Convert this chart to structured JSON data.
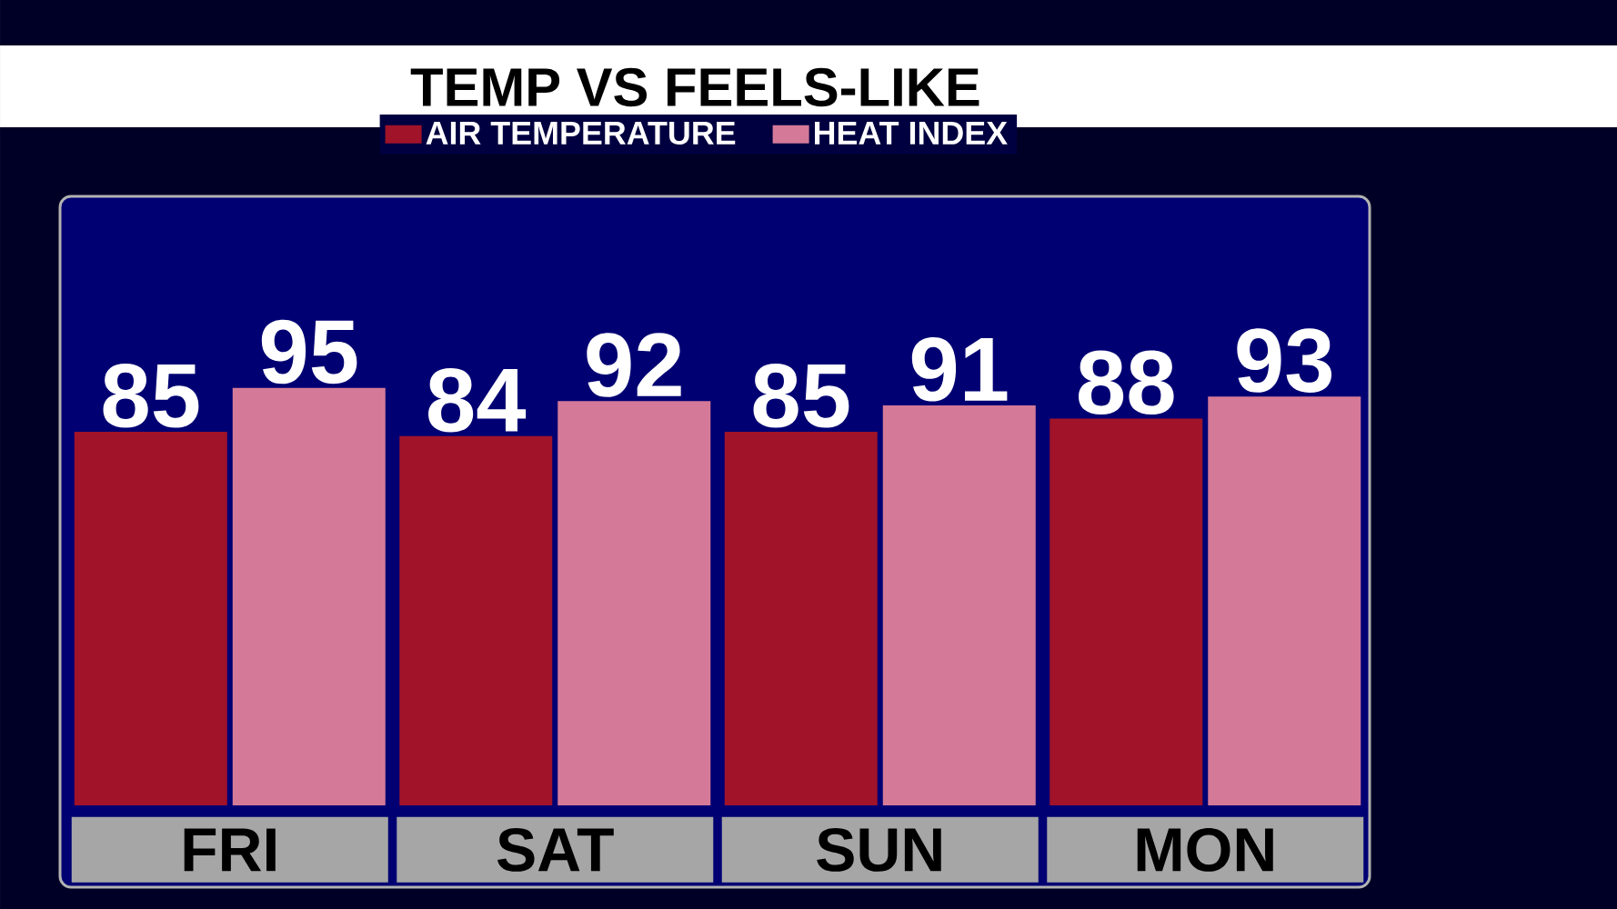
{
  "chart_data": {
    "type": "bar",
    "title": "TEMP VS FEELS-LIKE",
    "categories": [
      "FRI",
      "SAT",
      "SUN",
      "MON"
    ],
    "series": [
      {
        "name": "AIR TEMPERATURE",
        "color": "#a01329",
        "values": [
          85,
          84,
          85,
          88
        ]
      },
      {
        "name": "HEAT INDEX",
        "color": "#d47a98",
        "values": [
          95,
          92,
          91,
          93
        ]
      }
    ],
    "data_labels": true,
    "legend": "top"
  }
}
